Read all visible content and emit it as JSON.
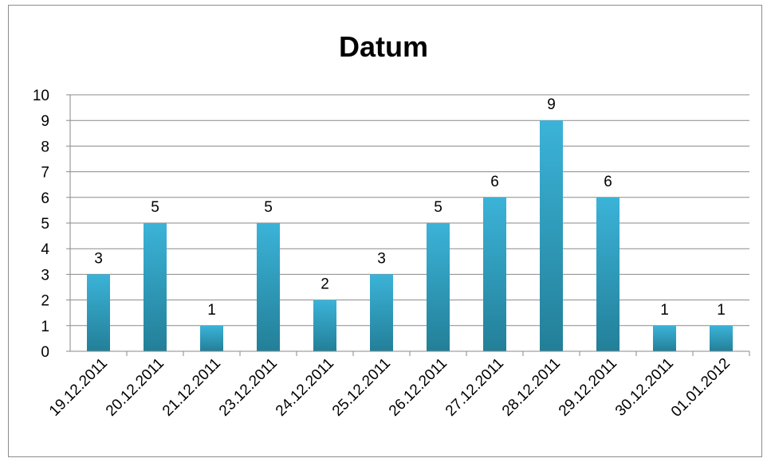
{
  "chart_data": {
    "type": "bar",
    "title": "Datum",
    "categories": [
      "19.12.2011",
      "20.12.2011",
      "21.12.2011",
      "23.12.2011",
      "24.12.2011",
      "25.12.2011",
      "26.12.2011",
      "27.12.2011",
      "28.12.2011",
      "29.12.2011",
      "30.12.2011",
      "01.01.2012"
    ],
    "values": [
      3,
      5,
      1,
      5,
      2,
      3,
      5,
      6,
      9,
      6,
      1,
      1
    ],
    "ylim": [
      0,
      10
    ],
    "yticks": [
      "0",
      "1",
      "2",
      "3",
      "4",
      "5",
      "6",
      "7",
      "8",
      "9",
      "10"
    ],
    "data_labels": true,
    "grid": true,
    "legend": "none",
    "colors": {
      "bar_top": "#3bb3d8",
      "bar_bottom": "#237f98",
      "grid": "#8a8a8a"
    }
  }
}
